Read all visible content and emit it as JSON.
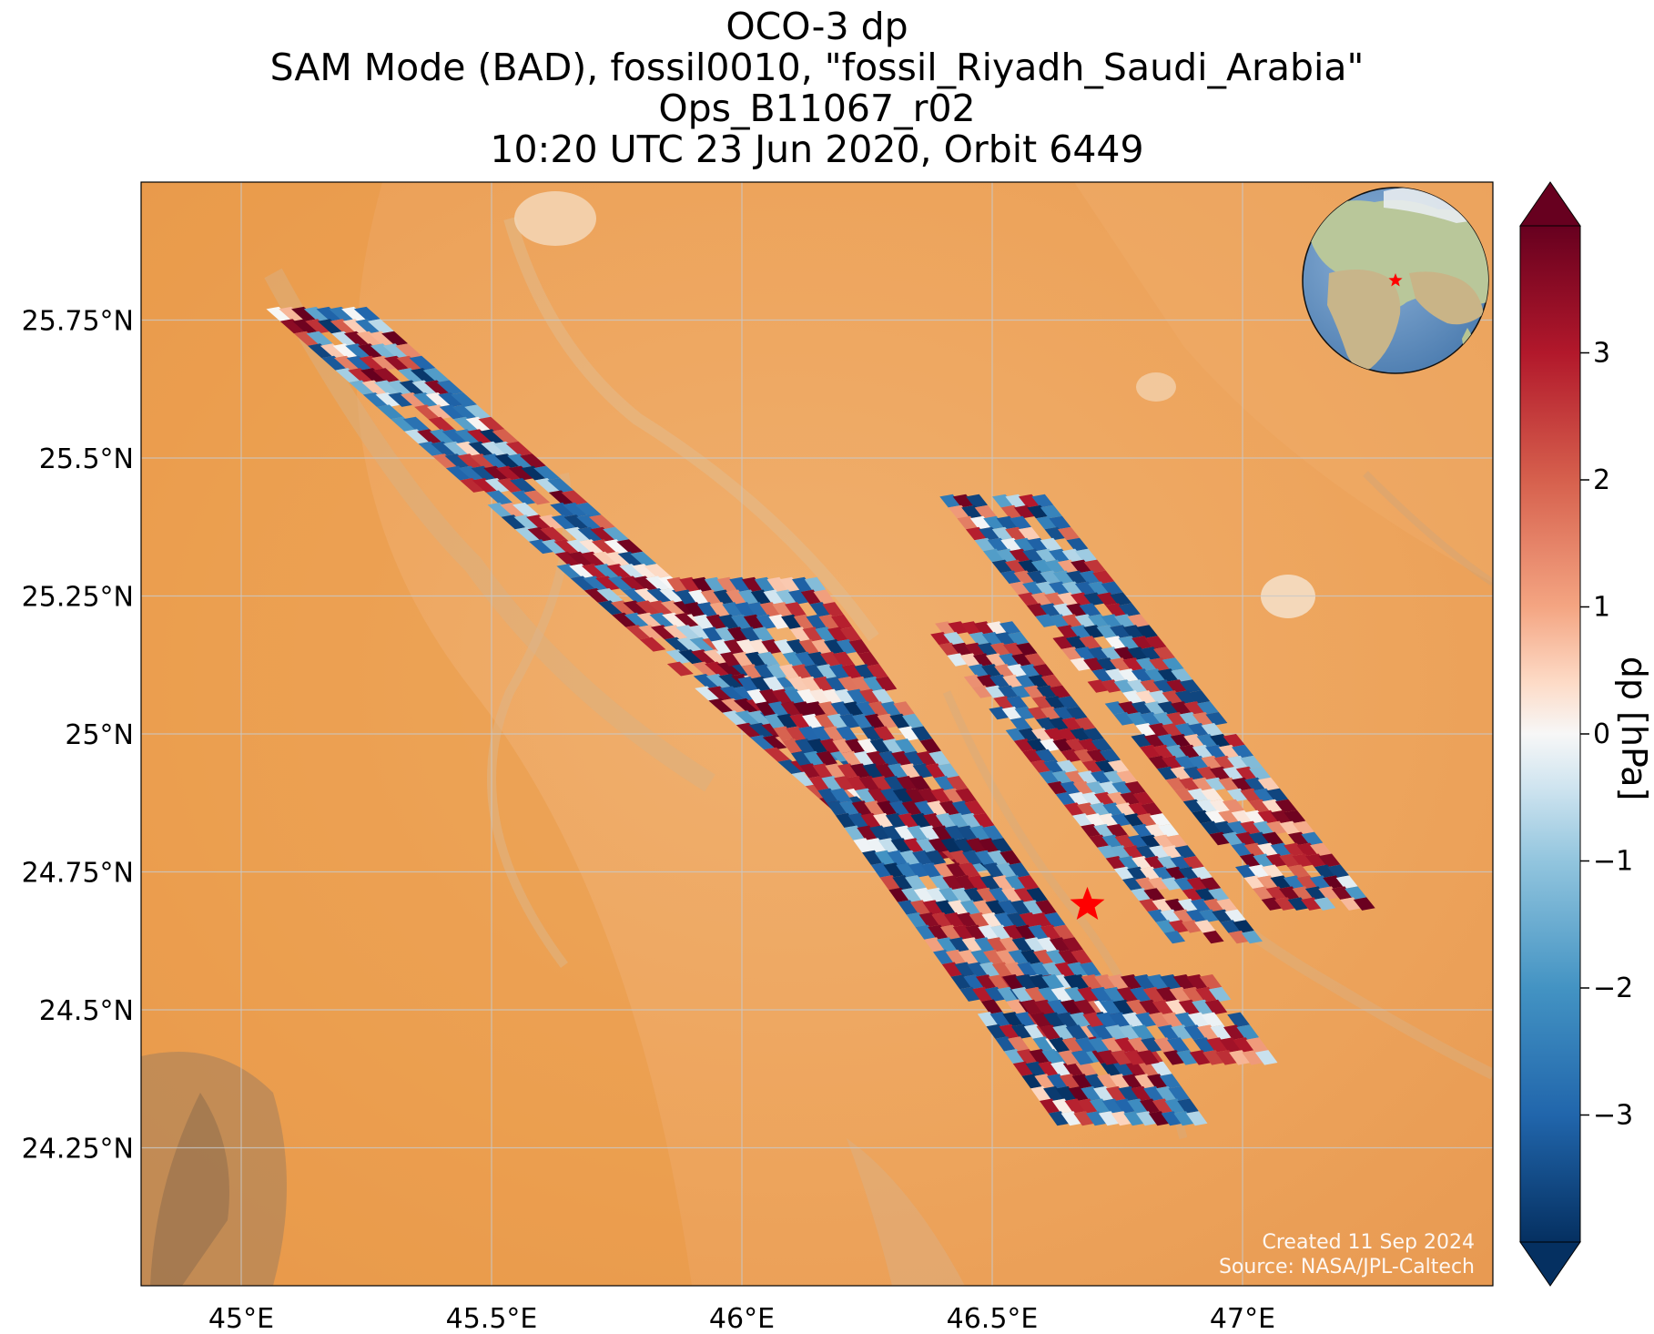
{
  "titles": {
    "line1": "OCO-3 dp",
    "line2": "SAM Mode (BAD), fossil0010, \"fossil_Riyadh_Saudi_Arabia\"",
    "line3": "Ops_B11067_r02",
    "line4": "10:20 UTC 23 Jun 2020, Orbit 6449"
  },
  "credits": {
    "created": "Created 11 Sep 2024",
    "source": "Source: NASA/JPL-Caltech"
  },
  "colors": {
    "desert": "#efa760",
    "gridline": "#c8c8c8",
    "target_marker": "#ff0000",
    "colormap": "RdBu_r"
  },
  "icons": {
    "target": "star-icon",
    "globe_inset": "globe-icon"
  },
  "chart_data": {
    "type": "heatmap",
    "projection": "map (lon/lat)",
    "xlim": [
      44.8,
      47.5
    ],
    "ylim": [
      24.0,
      26.0
    ],
    "x_ticks": [
      {
        "value": 45.0,
        "label": "45°E"
      },
      {
        "value": 45.5,
        "label": "45.5°E"
      },
      {
        "value": 46.0,
        "label": "46°E"
      },
      {
        "value": 46.5,
        "label": "46.5°E"
      },
      {
        "value": 47.0,
        "label": "47°E"
      }
    ],
    "y_ticks": [
      {
        "value": 24.25,
        "label": "24.25°N"
      },
      {
        "value": 24.5,
        "label": "24.5°N"
      },
      {
        "value": 24.75,
        "label": "24.75°N"
      },
      {
        "value": 25.0,
        "label": "25°N"
      },
      {
        "value": 25.25,
        "label": "25.25°N"
      },
      {
        "value": 25.5,
        "label": "25.5°N"
      },
      {
        "value": 25.75,
        "label": "25.75°N"
      }
    ],
    "grid": true,
    "target": {
      "lon": 46.69,
      "lat": 24.69
    },
    "swaths": [
      {
        "start": [
          45.15,
          25.77
        ],
        "end": [
          46.42,
          24.75
        ],
        "half_width_lon": 0.1,
        "cells_along": 46,
        "cells_across": 8
      },
      {
        "start": [
          46.0,
          25.28
        ],
        "end": [
          46.78,
          24.29
        ],
        "half_width_lon": 0.15,
        "cells_along": 44,
        "cells_across": 12
      },
      {
        "start": [
          46.73,
          24.56
        ],
        "end": [
          46.86,
          24.4
        ],
        "half_width_lon": 0.21,
        "cells_along": 7,
        "cells_across": 16
      },
      {
        "start": [
          46.5,
          25.43
        ],
        "end": [
          47.16,
          24.68
        ],
        "half_width_lon": 0.105,
        "cells_along": 38,
        "cells_across": 8
      },
      {
        "start": [
          46.45,
          25.2
        ],
        "end": [
          46.95,
          24.62
        ],
        "half_width_lon": 0.09,
        "cells_along": 30,
        "cells_across": 7
      }
    ],
    "colorbar": {
      "label": "dp [hPa]",
      "min": -4,
      "max": 4,
      "extend": "both",
      "ticks": [
        {
          "value": 3,
          "label": "3"
        },
        {
          "value": 2,
          "label": "2"
        },
        {
          "value": 1,
          "label": "1"
        },
        {
          "value": 0,
          "label": "0"
        },
        {
          "value": -1,
          "label": "−1"
        },
        {
          "value": -2,
          "label": "−2"
        },
        {
          "value": -3,
          "label": "−3"
        }
      ]
    }
  }
}
